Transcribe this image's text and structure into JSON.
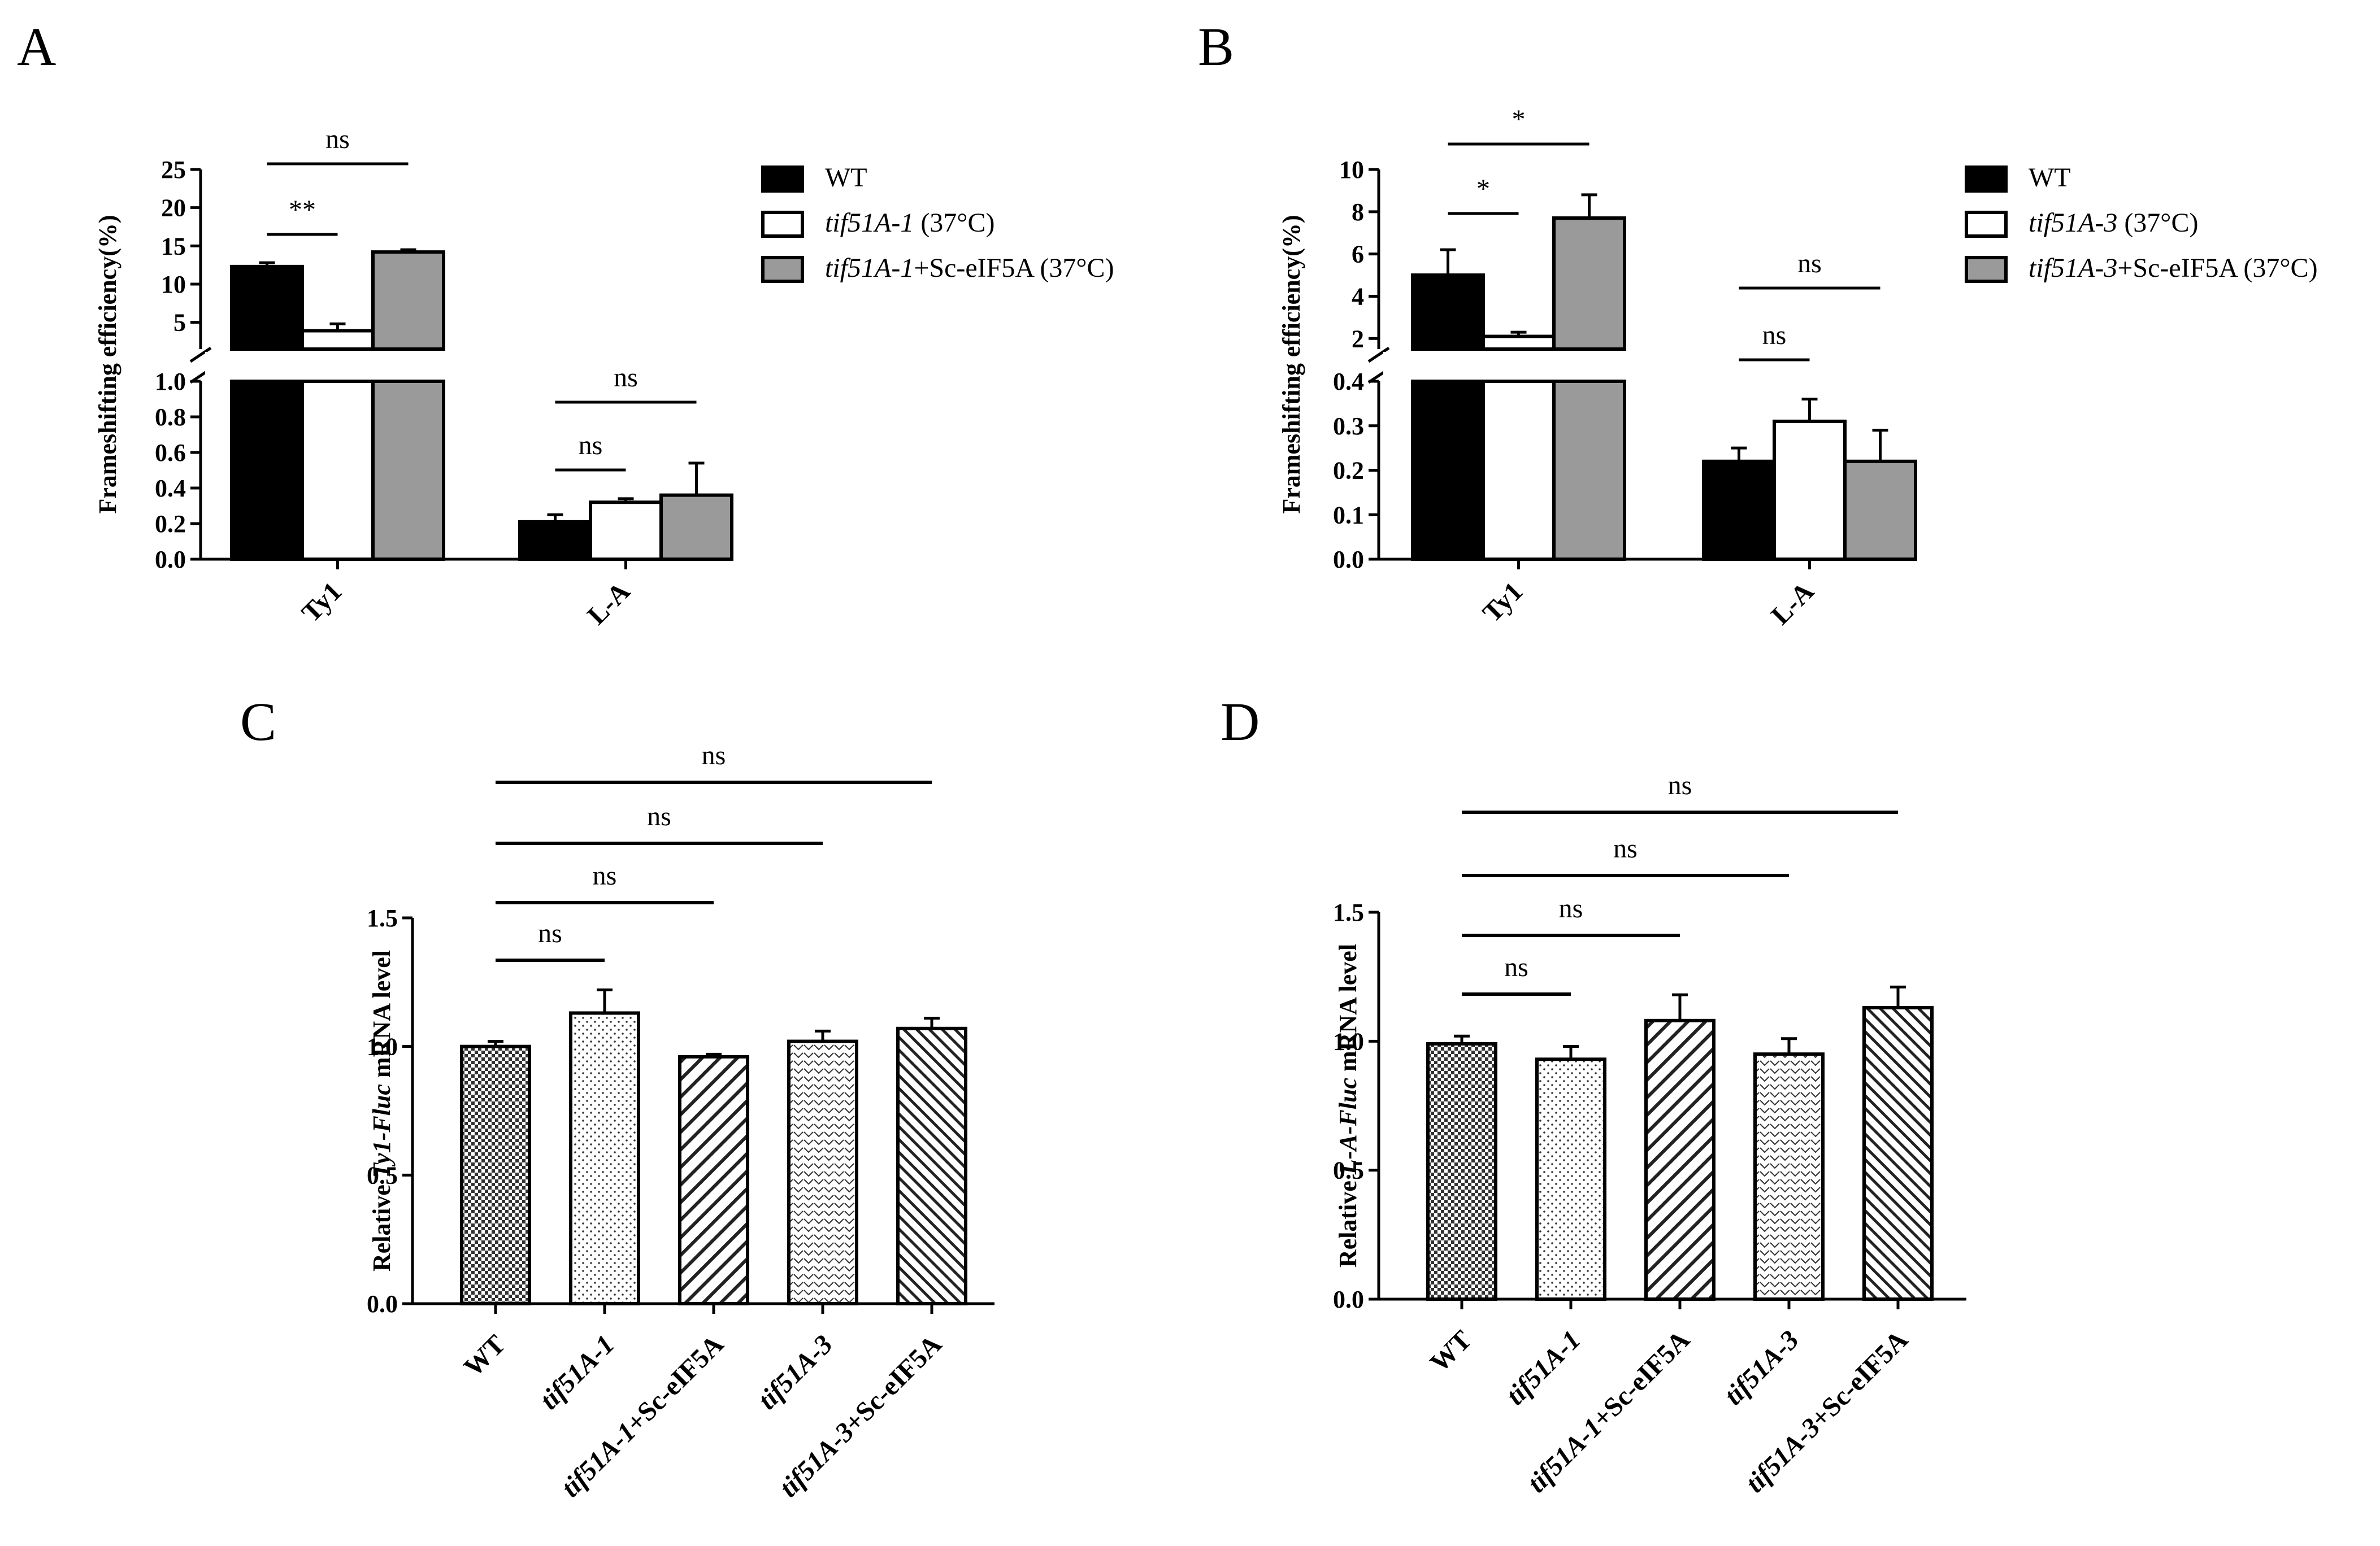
{
  "figure": {
    "panels": [
      "A",
      "B",
      "C",
      "D"
    ]
  },
  "chart_data": [
    {
      "panel": "A",
      "type": "bar",
      "ylabel": "Frameshifting efficiency(%)",
      "categories": [
        "Ty1",
        "L-A"
      ],
      "series": [
        {
          "name": "WT",
          "name_italic": "",
          "name_suffix": "WT",
          "fill": "#000000",
          "values": [
            12.3,
            0.21
          ],
          "errors": [
            0.5,
            0.04
          ]
        },
        {
          "name": "tif51A-1 (37°C)",
          "name_italic": "tif51A-1",
          "name_suffix": " (37°C)",
          "fill": "#ffffff",
          "values": [
            3.9,
            0.32
          ],
          "errors": [
            0.9,
            0.02
          ]
        },
        {
          "name": "tif51A-1+Sc-eIF5A (37°C)",
          "name_italic": "tif51A-1",
          "name_suffix": "+Sc-eIF5A (37°C)",
          "fill": "#9a9a9a",
          "values": [
            14.2,
            0.36
          ],
          "errors": [
            0.3,
            0.18
          ]
        }
      ],
      "axis_upper": {
        "ylim": [
          1.5,
          25
        ],
        "ticks": [
          "25",
          "20",
          "15",
          "10",
          "5"
        ]
      },
      "axis_lower": {
        "ylim": [
          0,
          1.0
        ],
        "ticks": [
          "1.0",
          "0.8",
          "0.6",
          "0.4",
          "0.2",
          "0.0"
        ]
      },
      "significance": [
        {
          "label": "**",
          "category": "Ty1",
          "from": 0,
          "to": 1
        },
        {
          "label": "ns",
          "category": "Ty1",
          "from": 0,
          "to": 2
        },
        {
          "label": "ns",
          "category": "L-A",
          "from": 0,
          "to": 1
        },
        {
          "label": "ns",
          "category": "L-A",
          "from": 0,
          "to": 2
        }
      ]
    },
    {
      "panel": "B",
      "type": "bar",
      "ylabel": "Frameshifting efficiency(%)",
      "categories": [
        "Ty1",
        "L-A"
      ],
      "series": [
        {
          "name": "WT",
          "name_italic": "",
          "name_suffix": "WT",
          "fill": "#000000",
          "values": [
            5.0,
            0.22
          ],
          "errors": [
            1.2,
            0.03
          ]
        },
        {
          "name": "tif51A-3 (37°C)",
          "name_italic": "tif51A-3",
          "name_suffix": " (37°C)",
          "fill": "#ffffff",
          "values": [
            2.1,
            0.31
          ],
          "errors": [
            0.2,
            0.05
          ]
        },
        {
          "name": "tif51A-3+Sc-eIF5A (37°C)",
          "name_italic": "tif51A-3",
          "name_suffix": "+Sc-eIF5A (37°C)",
          "fill": "#9a9a9a",
          "values": [
            7.7,
            0.22
          ],
          "errors": [
            1.1,
            0.07
          ]
        }
      ],
      "axis_upper": {
        "ylim": [
          1.5,
          10
        ],
        "ticks": [
          "10",
          "8",
          "6",
          "4",
          "2"
        ]
      },
      "axis_lower": {
        "ylim": [
          0,
          0.4
        ],
        "ticks": [
          "0.4",
          "0.3",
          "0.2",
          "0.1",
          "0.0"
        ]
      },
      "significance": [
        {
          "label": "*",
          "category": "Ty1",
          "from": 0,
          "to": 1
        },
        {
          "label": "*",
          "category": "Ty1",
          "from": 0,
          "to": 2
        },
        {
          "label": "ns",
          "category": "L-A",
          "from": 0,
          "to": 1
        },
        {
          "label": "ns",
          "category": "L-A",
          "from": 0,
          "to": 2
        }
      ]
    },
    {
      "panel": "C",
      "type": "bar",
      "ylabel_prefix": "Relative ",
      "ylabel_italic": "Ty1-Fluc",
      "ylabel_suffix": " mRNA level",
      "ylim": [
        0,
        1.5
      ],
      "ticks": [
        "1.5",
        "1.0",
        "0.5",
        "0.0"
      ],
      "categories": [
        {
          "italic": "",
          "rest": "WT"
        },
        {
          "italic": "tif51A-1",
          "rest": ""
        },
        {
          "italic": "tif51A-1",
          "rest": "+Sc-eIF5A"
        },
        {
          "italic": "tif51A-3",
          "rest": ""
        },
        {
          "italic": "tif51A-3",
          "rest": "+Sc-eIF5A"
        }
      ],
      "values": [
        1.0,
        1.13,
        0.96,
        1.02,
        1.07
      ],
      "errors": [
        0.02,
        0.09,
        0.01,
        0.04,
        0.04
      ],
      "patterns": [
        "checker",
        "dots",
        "diag",
        "vee",
        "diag-dense"
      ],
      "significance": [
        {
          "label": "ns",
          "from": 0,
          "to": 1
        },
        {
          "label": "ns",
          "from": 0,
          "to": 2
        },
        {
          "label": "ns",
          "from": 0,
          "to": 3
        },
        {
          "label": "ns",
          "from": 0,
          "to": 4
        }
      ]
    },
    {
      "panel": "D",
      "type": "bar",
      "ylabel_prefix": "Relative ",
      "ylabel_italic": "L-A-Fluc",
      "ylabel_suffix": " mRNA level",
      "ylim": [
        0,
        1.5
      ],
      "ticks": [
        "1.5",
        "1.0",
        "0.5",
        "0.0"
      ],
      "categories": [
        {
          "italic": "",
          "rest": "WT"
        },
        {
          "italic": "tif51A-1",
          "rest": ""
        },
        {
          "italic": "tif51A-1",
          "rest": "+Sc-eIF5A"
        },
        {
          "italic": "tif51A-3",
          "rest": ""
        },
        {
          "italic": "tif51A-3",
          "rest": "+Sc-eIF5A"
        }
      ],
      "values": [
        0.99,
        0.93,
        1.08,
        0.95,
        1.13
      ],
      "errors": [
        0.03,
        0.05,
        0.1,
        0.06,
        0.08
      ],
      "patterns": [
        "checker",
        "dots",
        "diag",
        "vee",
        "diag-dense"
      ],
      "significance": [
        {
          "label": "ns",
          "from": 0,
          "to": 1
        },
        {
          "label": "ns",
          "from": 0,
          "to": 2
        },
        {
          "label": "ns",
          "from": 0,
          "to": 3
        },
        {
          "label": "ns",
          "from": 0,
          "to": 4
        }
      ]
    }
  ]
}
